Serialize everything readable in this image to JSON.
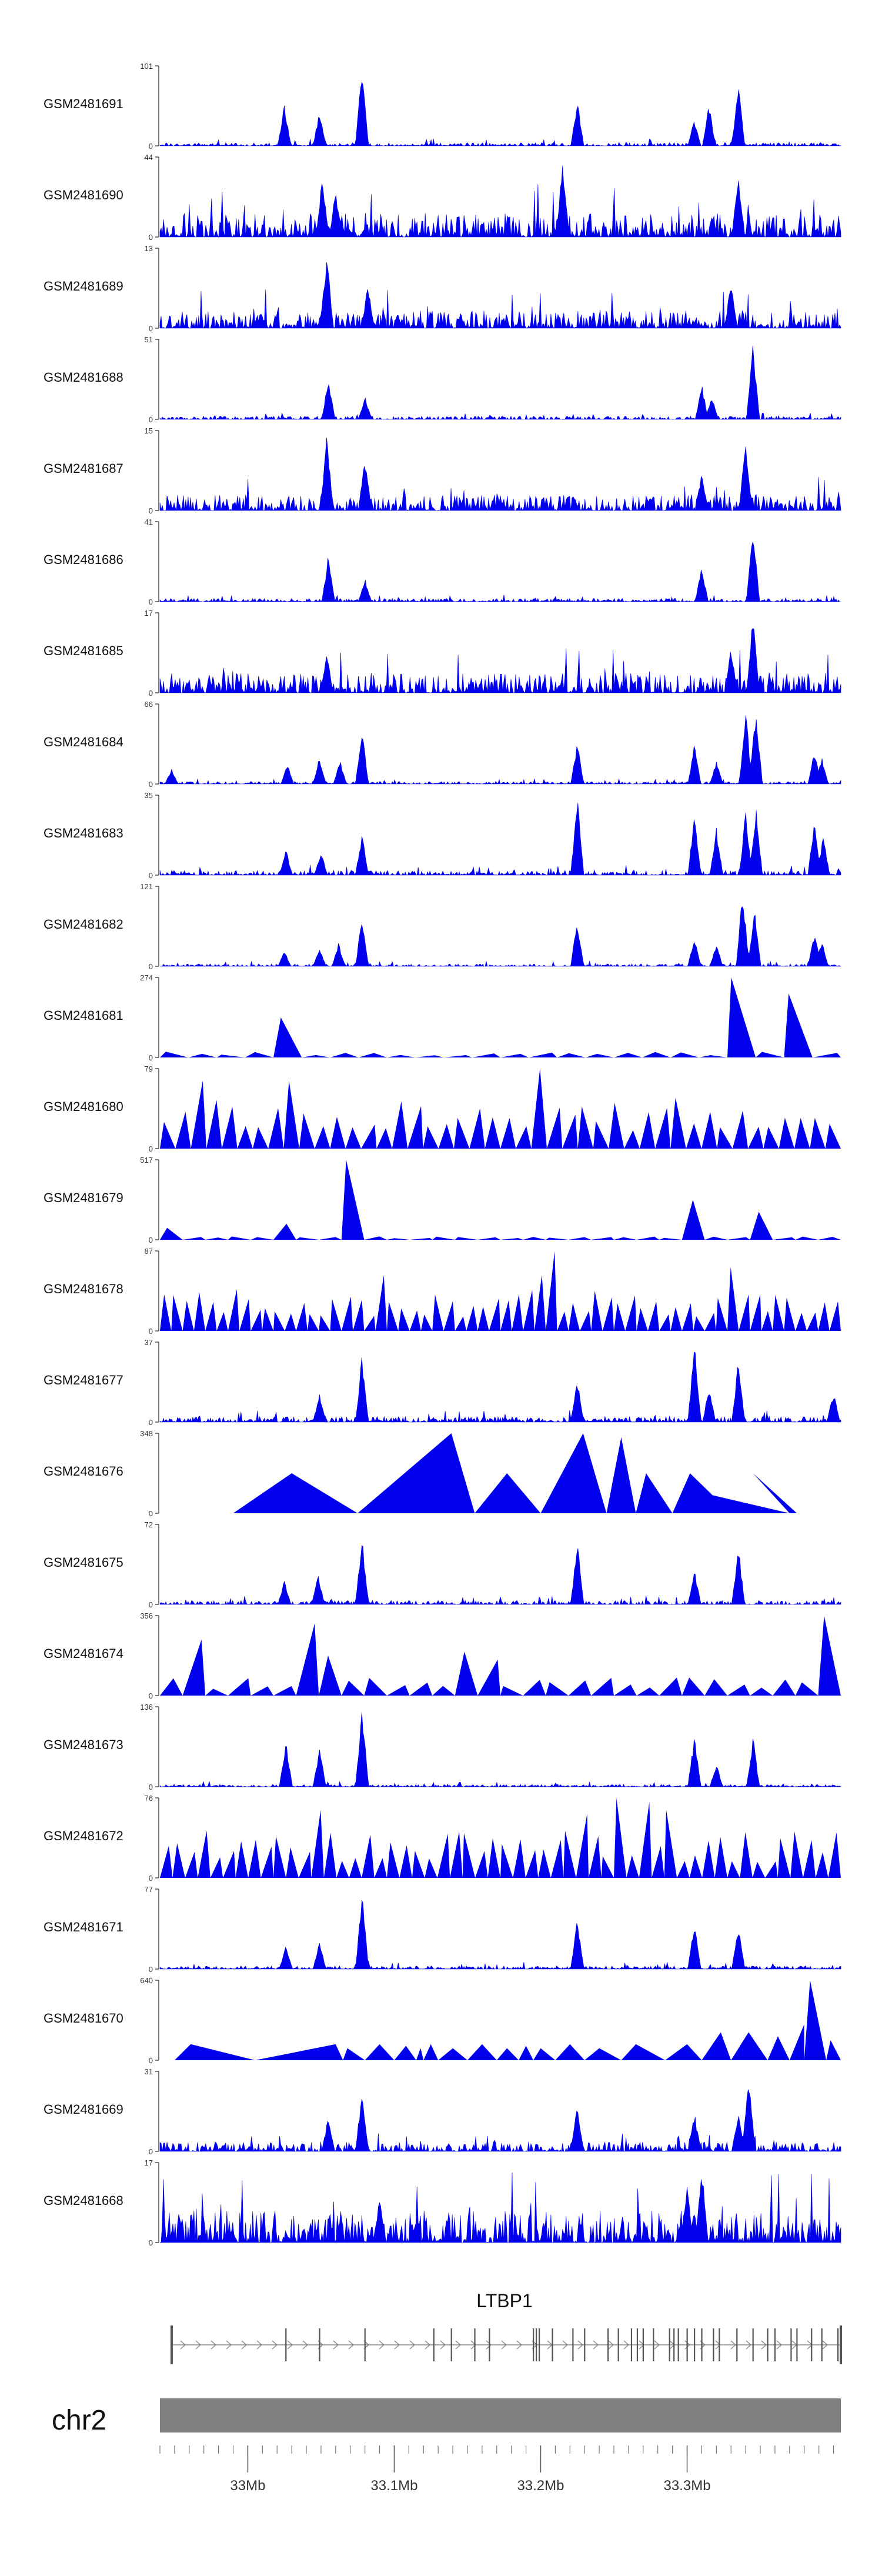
{
  "chart_data": {
    "type": "area",
    "title": "",
    "region": {
      "chromosome": "chr2",
      "gene_label": "LTBP1",
      "x_range_mb": [
        32.94,
        33.405
      ],
      "x_tick_labels": [
        {
          "value": 33.0,
          "label": "33Mb"
        },
        {
          "value": 33.1,
          "label": "33.1Mb"
        },
        {
          "value": 33.2,
          "label": "33.2Mb"
        },
        {
          "value": 33.3,
          "label": "33.3Mb"
        }
      ]
    },
    "series": [
      {
        "name": "GSM2481691",
        "ymax": 101,
        "ymin": 0,
        "style": "dense",
        "noise": 0.04,
        "peaks": [
          [
            33.025,
            0.55
          ],
          [
            33.049,
            0.45
          ],
          [
            33.078,
            1.0
          ],
          [
            33.225,
            0.6
          ],
          [
            33.335,
            0.8
          ],
          [
            33.315,
            0.55
          ],
          [
            33.305,
            0.35
          ]
        ]
      },
      {
        "name": "GSM2481690",
        "ymax": 44,
        "ymin": 0,
        "style": "dense",
        "noise": 0.3,
        "peaks": [
          [
            33.215,
            1.0
          ],
          [
            33.051,
            0.8
          ],
          [
            33.335,
            0.85
          ],
          [
            33.06,
            0.6
          ]
        ]
      },
      {
        "name": "GSM2481689",
        "ymax": 13,
        "ymin": 0,
        "style": "dense",
        "noise": 0.22,
        "peaks": [
          [
            33.054,
            1.0
          ],
          [
            33.082,
            0.55
          ],
          [
            33.33,
            0.6
          ]
        ]
      },
      {
        "name": "GSM2481688",
        "ymax": 51,
        "ymin": 0,
        "style": "dense",
        "noise": 0.04,
        "peaks": [
          [
            33.055,
            0.55
          ],
          [
            33.08,
            0.3
          ],
          [
            33.31,
            0.45
          ],
          [
            33.345,
            1.0
          ],
          [
            33.317,
            0.3
          ]
        ]
      },
      {
        "name": "GSM2481687",
        "ymax": 15,
        "ymin": 0,
        "style": "dense",
        "noise": 0.2,
        "peaks": [
          [
            33.054,
            1.0
          ],
          [
            33.08,
            0.7
          ],
          [
            33.34,
            0.9
          ],
          [
            33.31,
            0.5
          ]
        ]
      },
      {
        "name": "GSM2481686",
        "ymax": 41,
        "ymin": 0,
        "style": "dense",
        "noise": 0.04,
        "peaks": [
          [
            33.055,
            0.6
          ],
          [
            33.08,
            0.3
          ],
          [
            33.31,
            0.45
          ],
          [
            33.345,
            1.0
          ]
        ]
      },
      {
        "name": "GSM2481685",
        "ymax": 17,
        "ymin": 0,
        "style": "dense",
        "noise": 0.25,
        "peaks": [
          [
            33.345,
            1.0
          ],
          [
            33.33,
            0.6
          ],
          [
            33.054,
            0.5
          ]
        ]
      },
      {
        "name": "GSM2481684",
        "ymax": 66,
        "ymin": 0,
        "style": "dense",
        "noise": 0.03,
        "peaks": [
          [
            32.948,
            0.2
          ],
          [
            33.027,
            0.25
          ],
          [
            33.049,
            0.35
          ],
          [
            33.063,
            0.3
          ],
          [
            33.078,
            0.7
          ],
          [
            33.225,
            0.55
          ],
          [
            33.305,
            0.5
          ],
          [
            33.32,
            0.3
          ],
          [
            33.34,
            0.95
          ],
          [
            33.347,
            1.0
          ],
          [
            33.387,
            0.45
          ],
          [
            33.392,
            0.35
          ]
        ]
      },
      {
        "name": "GSM2481683",
        "ymax": 35,
        "ymin": 0,
        "style": "dense",
        "noise": 0.06,
        "peaks": [
          [
            33.026,
            0.35
          ],
          [
            33.05,
            0.3
          ],
          [
            33.078,
            0.55
          ],
          [
            33.225,
            1.0
          ],
          [
            33.305,
            0.8
          ],
          [
            33.32,
            0.6
          ],
          [
            33.34,
            0.85
          ],
          [
            33.347,
            0.9
          ],
          [
            33.387,
            0.75
          ],
          [
            33.393,
            0.5
          ]
        ]
      },
      {
        "name": "GSM2481682",
        "ymax": 121,
        "ymin": 0,
        "style": "dense",
        "noise": 0.03,
        "peaks": [
          [
            33.025,
            0.2
          ],
          [
            33.049,
            0.25
          ],
          [
            33.062,
            0.3
          ],
          [
            33.078,
            0.65
          ],
          [
            33.225,
            0.6
          ],
          [
            33.305,
            0.4
          ],
          [
            33.32,
            0.3
          ],
          [
            33.338,
            1.0
          ],
          [
            33.346,
            0.75
          ],
          [
            33.387,
            0.45
          ],
          [
            33.392,
            0.35
          ]
        ]
      },
      {
        "name": "GSM2481681",
        "ymax": 274,
        "ymin": 0,
        "style": "triangle",
        "noise": 0.05,
        "n": 24,
        "peaks": [
          [
            33.345,
            1.0
          ],
          [
            33.38,
            0.8
          ],
          [
            33.025,
            0.5
          ]
        ]
      },
      {
        "name": "GSM2481680",
        "ymax": 79,
        "ymin": 0,
        "style": "triangle",
        "noise": 0.45,
        "n": 44,
        "peaks": [
          [
            33.196,
            1.0
          ],
          [
            33.03,
            0.85
          ],
          [
            32.97,
            0.85
          ],
          [
            33.405,
            0.85
          ]
        ]
      },
      {
        "name": "GSM2481679",
        "ymax": 517,
        "ymin": 0,
        "style": "triangle",
        "noise": 0.03,
        "n": 30,
        "peaks": [
          [
            33.078,
            1.0
          ],
          [
            33.31,
            0.5
          ],
          [
            33.345,
            0.35
          ],
          [
            33.03,
            0.2
          ],
          [
            32.948,
            0.15
          ]
        ]
      },
      {
        "name": "GSM2481678",
        "ymax": 87,
        "ymin": 0,
        "style": "triangle",
        "noise": 0.35,
        "n": 60,
        "peaks": [
          [
            33.21,
            1.0
          ],
          [
            33.2,
            0.7
          ],
          [
            33.09,
            0.7
          ],
          [
            33.33,
            0.8
          ]
        ]
      },
      {
        "name": "GSM2481677",
        "ymax": 37,
        "ymin": 0,
        "style": "dense",
        "noise": 0.07,
        "peaks": [
          [
            33.078,
            0.85
          ],
          [
            33.225,
            0.55
          ],
          [
            33.305,
            1.0
          ],
          [
            33.335,
            0.8
          ],
          [
            33.315,
            0.45
          ],
          [
            33.4,
            0.4
          ],
          [
            33.049,
            0.35
          ]
        ]
      },
      {
        "name": "GSM2481676",
        "ymax": 348,
        "ymin": 0,
        "style": "tri-explicit",
        "tris": [
          [
            32.99,
            33.03,
            33.075,
            0.5
          ],
          [
            33.075,
            33.139,
            33.155,
            1.0
          ],
          [
            33.155,
            33.177,
            33.2,
            0.5
          ],
          [
            33.2,
            33.229,
            33.245,
            1.0
          ],
          [
            33.245,
            33.255,
            33.265,
            0.95
          ],
          [
            33.265,
            33.272,
            33.29,
            0.5
          ],
          [
            33.29,
            33.302,
            33.33,
            0.5
          ],
          [
            33.33,
            33.3,
            33.37,
            0.3
          ],
          [
            33.37,
            33.345,
            33.375,
            0.5
          ]
        ]
      },
      {
        "name": "GSM2481675",
        "ymax": 72,
        "ymin": 0,
        "style": "dense",
        "noise": 0.05,
        "peaks": [
          [
            33.078,
            0.9
          ],
          [
            33.225,
            0.8
          ],
          [
            33.335,
            0.75
          ],
          [
            33.305,
            0.45
          ],
          [
            33.048,
            0.4
          ],
          [
            33.025,
            0.3
          ]
        ]
      },
      {
        "name": "GSM2481674",
        "ymax": 356,
        "ymin": 0,
        "style": "triangle",
        "noise": 0.15,
        "n": 30,
        "peaks": [
          [
            33.399,
            1.0
          ],
          [
            33.035,
            0.9
          ],
          [
            32.965,
            0.7
          ],
          [
            33.055,
            0.5
          ],
          [
            33.155,
            0.55
          ],
          [
            33.17,
            0.45
          ]
        ]
      },
      {
        "name": "GSM2481673",
        "ymax": 136,
        "ymin": 0,
        "style": "dense",
        "noise": 0.03,
        "peaks": [
          [
            33.078,
            1.0
          ],
          [
            33.026,
            0.6
          ],
          [
            33.049,
            0.5
          ],
          [
            33.305,
            0.65
          ],
          [
            33.345,
            0.65
          ],
          [
            33.32,
            0.3
          ]
        ]
      },
      {
        "name": "GSM2481672",
        "ymax": 76,
        "ymin": 0,
        "style": "triangle",
        "noise": 0.4,
        "n": 54,
        "peaks": [
          [
            33.25,
            1.0
          ],
          [
            33.27,
            0.95
          ],
          [
            33.29,
            0.85
          ],
          [
            33.23,
            0.8
          ],
          [
            33.05,
            0.85
          ]
        ]
      },
      {
        "name": "GSM2481671",
        "ymax": 77,
        "ymin": 0,
        "style": "dense",
        "noise": 0.04,
        "peaks": [
          [
            33.078,
            1.0
          ],
          [
            33.225,
            0.65
          ],
          [
            33.305,
            0.6
          ],
          [
            33.335,
            0.55
          ],
          [
            33.026,
            0.3
          ],
          [
            33.049,
            0.35
          ]
        ]
      },
      {
        "name": "GSM2481670",
        "ymax": 640,
        "ymin": 0,
        "style": "tri-explicit",
        "tris": [
          [
            32.95,
            32.961,
            33.005,
            0.2
          ],
          [
            33.005,
            33.06,
            33.065,
            0.2
          ],
          [
            33.065,
            33.068,
            33.08,
            0.15
          ],
          [
            33.08,
            33.09,
            33.1,
            0.2
          ],
          [
            33.1,
            33.108,
            33.115,
            0.18
          ],
          [
            33.115,
            33.118,
            33.12,
            0.15
          ],
          [
            33.12,
            33.125,
            33.13,
            0.2
          ],
          [
            33.13,
            33.14,
            33.15,
            0.15
          ],
          [
            33.15,
            33.16,
            33.17,
            0.2
          ],
          [
            33.17,
            33.177,
            33.185,
            0.15
          ],
          [
            33.185,
            33.19,
            33.195,
            0.18
          ],
          [
            33.195,
            33.2,
            33.21,
            0.15
          ],
          [
            33.21,
            33.22,
            33.23,
            0.2
          ],
          [
            33.23,
            33.24,
            33.255,
            0.15
          ],
          [
            33.255,
            33.265,
            33.285,
            0.2
          ],
          [
            33.285,
            33.3,
            33.31,
            0.2
          ],
          [
            33.31,
            33.323,
            33.33,
            0.35
          ],
          [
            33.33,
            33.342,
            33.355,
            0.35
          ],
          [
            33.355,
            33.362,
            33.37,
            0.3
          ],
          [
            33.37,
            33.38,
            33.38,
            0.45
          ],
          [
            33.38,
            33.384,
            33.395,
            1.0
          ],
          [
            33.395,
            33.398,
            33.405,
            0.25
          ]
        ]
      },
      {
        "name": "GSM2481669",
        "ymax": 31,
        "ymin": 0,
        "style": "dense",
        "noise": 0.12,
        "peaks": [
          [
            33.342,
            1.0
          ],
          [
            33.078,
            0.8
          ],
          [
            33.225,
            0.6
          ],
          [
            33.305,
            0.5
          ],
          [
            33.335,
            0.5
          ],
          [
            33.055,
            0.45
          ]
        ]
      },
      {
        "name": "GSM2481668",
        "ymax": 17,
        "ymin": 0,
        "style": "dense",
        "noise": 0.4,
        "peaks": [
          [
            33.31,
            1.0
          ],
          [
            33.3,
            0.8
          ],
          [
            33.09,
            0.6
          ]
        ]
      }
    ],
    "gene_track": {
      "gene": "LTBP1",
      "start_mb": 32.948,
      "end_mb": 33.405,
      "strand": "+",
      "exons_mb": [
        32.948,
        33.026,
        33.049,
        33.08,
        33.127,
        33.139,
        33.155,
        33.165,
        33.195,
        33.197,
        33.199,
        33.208,
        33.222,
        33.23,
        33.246,
        33.253,
        33.262,
        33.266,
        33.27,
        33.277,
        33.288,
        33.291,
        33.294,
        33.3,
        33.305,
        33.31,
        33.318,
        33.322,
        33.334,
        33.345,
        33.355,
        33.36,
        33.371,
        33.375,
        33.385,
        33.392,
        33.403,
        33.405
      ]
    },
    "xlabel": "",
    "ylabel": ""
  }
}
